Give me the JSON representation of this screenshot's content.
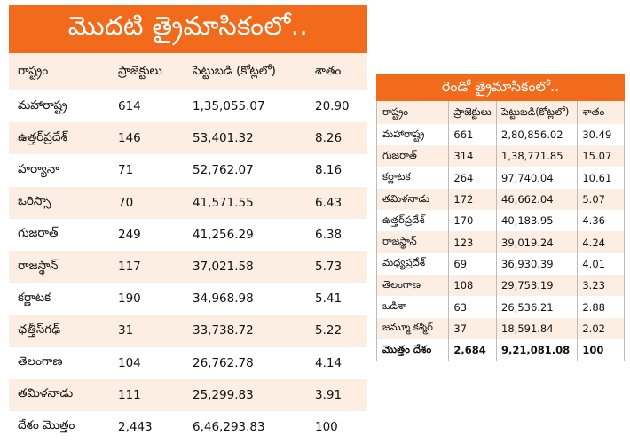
{
  "colors": {
    "banner": "#f26a1b",
    "row_tint": "#fdeee3"
  },
  "q1": {
    "title": "మొదటి త్రైమాసికంలో..",
    "headers": [
      "రాష్ట్రం",
      "ప్రాజెక్టులు",
      "పెట్టుబడి (కోట్లలో)",
      "శాతం"
    ],
    "rows": [
      [
        "మహారాష్ట్ర",
        "614",
        "1,35,055.07",
        "20.90"
      ],
      [
        "ఉత్తర్‌ప్రదేశ్",
        "146",
        "53,401.32",
        "8.26"
      ],
      [
        "హర్యానా",
        "71",
        "52,762.07",
        "8.16"
      ],
      [
        "ఒరిస్సా",
        "70",
        "41,571.55",
        "6.43"
      ],
      [
        "గుజరాత్",
        "249",
        "41,256.29",
        "6.38"
      ],
      [
        "రాజస్థాన్",
        "117",
        "37,021.58",
        "5.73"
      ],
      [
        "కర్ణాటక",
        "190",
        "34,968.98",
        "5.41"
      ],
      [
        "ఛత్తీస్‌గఢ్",
        "31",
        "33,738.72",
        "5.22"
      ],
      [
        "తెలంగాణ",
        "104",
        "26,762.78",
        "4.14"
      ],
      [
        "తమిళనాడు",
        "111",
        "25,299.83",
        "3.91"
      ],
      [
        "దేశం మొత్తం",
        "2,443",
        "6,46,293.83",
        "100"
      ]
    ]
  },
  "q2": {
    "title": "రెండో త్రైమాసికంలో..",
    "headers": [
      "రాష్ట్రం",
      "ప్రాజెక్టులు",
      "పెట్టుబడి(కోట్లలో)",
      "శాతం"
    ],
    "rows": [
      [
        "మహారాష్ట్ర",
        "661",
        "2,80,856.02",
        "30.49"
      ],
      [
        "గుజరాత్",
        "314",
        "1,38,771.85",
        "15.07"
      ],
      [
        "కర్ణాటక",
        "264",
        "97,740.04",
        "10.61"
      ],
      [
        "తమిళనాడు",
        "172",
        "46,662.04",
        "5.07"
      ],
      [
        "ఉత్తర్‌ప్రదేశ్",
        "170",
        "40,183.95",
        "4.36"
      ],
      [
        "రాజస్థాన్",
        "123",
        "39,019.24",
        "4.24"
      ],
      [
        "మధ్యప్రదేశ్",
        "69",
        "36,930.39",
        "4.01"
      ],
      [
        "తెలంగాణ",
        "108",
        "29,753.19",
        "3.23"
      ],
      [
        "ఒడిశా",
        "63",
        "26,536.21",
        "2.88"
      ],
      [
        "జమ్మూ కశ్మీర్",
        "37",
        "18,591.84",
        "2.02"
      ],
      [
        "మొత్తం దేశం",
        "2,684",
        "9,21,081.08",
        "100"
      ]
    ]
  }
}
